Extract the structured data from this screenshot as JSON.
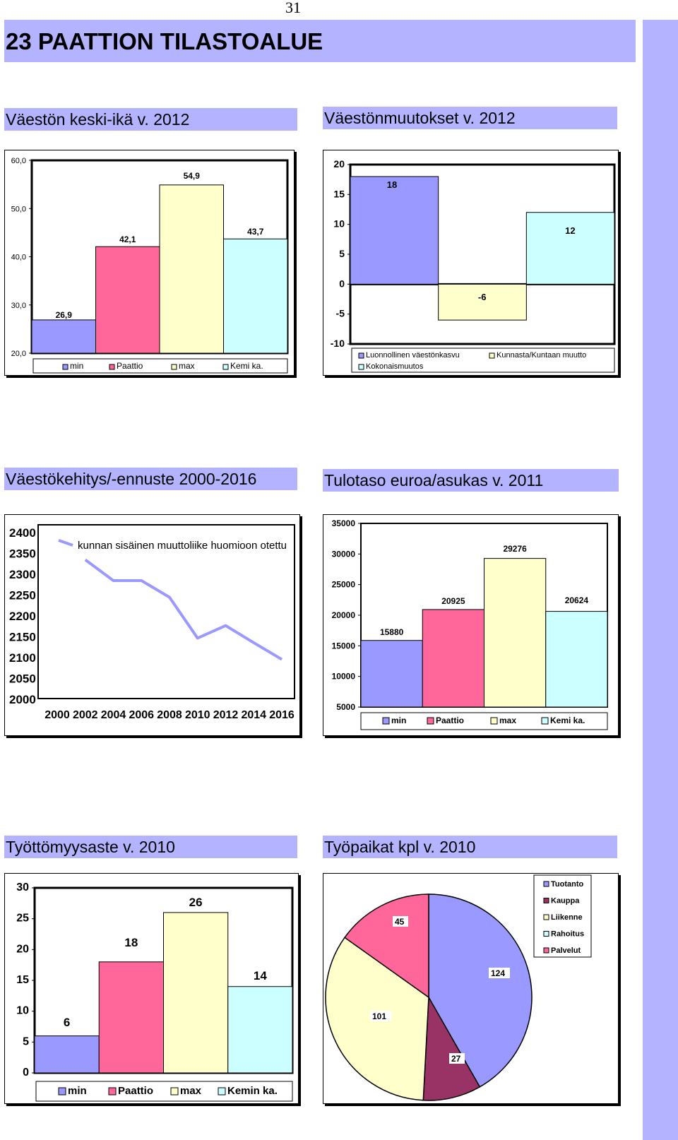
{
  "page_number": "31",
  "main_title": "23  PAATTION  TILASTOALUE",
  "sections": {
    "age": "Väestön  keski-ikä v. 2012",
    "change": "Väestönmuutokset v. 2012",
    "pop": "Väestökehitys/-ennuste 2000-2016",
    "income": "Tulotaso euroa/asukas v. 2011",
    "unemp": "Työttömyysaste   v.  2010",
    "jobs": "Työpaikat kpl v. 2010"
  },
  "colors": {
    "header_band": "#b3b3ff",
    "min": "#9999ff",
    "paattio": "#ff6699",
    "max": "#ffffcc",
    "kemi": "#ccffff",
    "kauppa": "#993366",
    "line": "#9999ff"
  },
  "chart_data": [
    {
      "id": "age",
      "type": "bar",
      "title": "",
      "categories": [
        "min",
        "Paattio",
        "max",
        "Kemi ka."
      ],
      "values": [
        26.9,
        42.1,
        54.9,
        43.7
      ],
      "value_labels": [
        "26,9",
        "42,1",
        "54,9",
        "43,7"
      ],
      "ylim": [
        20,
        60
      ],
      "yticks": [
        "20,0",
        "30,0",
        "40,0",
        "50,0",
        "60,0"
      ],
      "legend": "bottom",
      "grid": false
    },
    {
      "id": "change",
      "type": "bar",
      "title": "",
      "categories": [
        "Luonnollinen väestönkasvu",
        "Kunnasta/Kuntaan muutto",
        "Kokonaismuutos"
      ],
      "values": [
        18,
        -6,
        12
      ],
      "value_labels": [
        "18",
        "-6",
        "12"
      ],
      "ylim": [
        -10,
        20
      ],
      "yticks": [
        "-10",
        "-5",
        "0",
        "5",
        "10",
        "15",
        "20"
      ],
      "legend": "bottom",
      "grid": false
    },
    {
      "id": "pop",
      "type": "line",
      "title": "",
      "series": [
        {
          "name": "kunnan sisäinen muuttoliike huomioon otettu",
          "x": [
            2002,
            2004,
            2006,
            2008,
            2010,
            2012,
            2014,
            2016
          ],
          "values": [
            2333,
            2283,
            2283,
            2243,
            2145,
            2175,
            2134,
            2094
          ]
        }
      ],
      "xticks": [
        "2000",
        "2002",
        "2004",
        "2006",
        "2008",
        "2010",
        "2012",
        "2014",
        "2016"
      ],
      "yticks": [
        "2000",
        "2050",
        "2100",
        "2150",
        "2200",
        "2250",
        "2300",
        "2350",
        "2400"
      ],
      "xlim": [
        2000,
        2016
      ],
      "ylim": [
        2000,
        2400
      ],
      "legend": "top-left",
      "grid": false
    },
    {
      "id": "income",
      "type": "bar",
      "title": "",
      "categories": [
        "min",
        "Paattio",
        "max",
        "Kemi ka."
      ],
      "values": [
        15880,
        20925,
        29276,
        20624
      ],
      "value_labels": [
        "15880",
        "20925",
        "29276",
        "20624"
      ],
      "ylim": [
        5000,
        35000
      ],
      "yticks": [
        "5000",
        "10000",
        "15000",
        "20000",
        "25000",
        "30000",
        "35000"
      ],
      "legend": "bottom",
      "grid": false
    },
    {
      "id": "unemp",
      "type": "bar",
      "title": "",
      "categories": [
        "min",
        "Paattio",
        "max",
        "Kemin ka."
      ],
      "values": [
        6,
        18,
        26,
        14
      ],
      "value_labels": [
        "6",
        "18",
        "26",
        "14"
      ],
      "ylim": [
        0,
        30
      ],
      "yticks": [
        "0",
        "5",
        "10",
        "15",
        "20",
        "25",
        "30"
      ],
      "legend": "bottom",
      "grid": false
    },
    {
      "id": "jobs",
      "type": "pie",
      "title": "",
      "categories": [
        "Tuotanto",
        "Kauppa",
        "Liikenne",
        "Rahoitus",
        "Palvelut"
      ],
      "values": [
        124,
        27,
        101,
        0,
        45
      ],
      "value_labels": [
        "124",
        "27",
        "101",
        "0",
        "45"
      ],
      "legend": "top-right"
    }
  ]
}
